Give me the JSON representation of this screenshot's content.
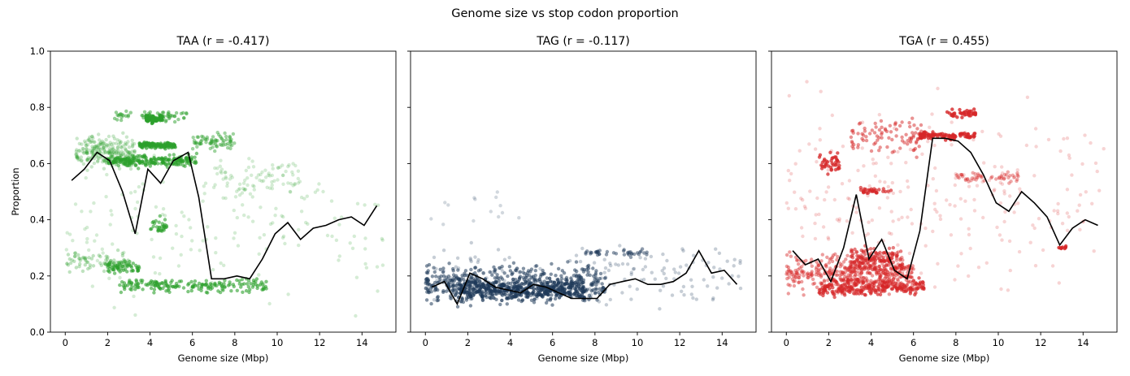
{
  "figure": {
    "suptitle": "Genome size vs stop codon proportion"
  },
  "chart_data": [
    {
      "type": "scatter",
      "title": "TAA  (r = -0.417)",
      "xlabel": "Genome size (Mbp)",
      "ylabel": "Proportion",
      "xlim": [
        -0.7,
        15.6
      ],
      "ylim": [
        0.0,
        1.0
      ],
      "xticks": [
        "0",
        "2",
        "4",
        "6",
        "8",
        "10",
        "12",
        "14"
      ],
      "yticks": [
        "0.0",
        "0.2",
        "0.4",
        "0.6",
        "0.8",
        "1.0"
      ],
      "color": "#2ca02c",
      "mean_line": {
        "color": "#000000",
        "x": [
          0.3,
          0.9,
          1.5,
          2.1,
          2.7,
          3.3,
          3.9,
          4.5,
          5.1,
          5.8,
          6.3,
          6.9,
          7.5,
          8.1,
          8.7,
          9.3,
          9.9,
          10.5,
          11.1,
          11.7,
          12.3,
          12.9,
          13.5,
          14.1,
          14.7
        ],
        "y": [
          0.54,
          0.58,
          0.64,
          0.61,
          0.5,
          0.35,
          0.58,
          0.53,
          0.61,
          0.64,
          0.48,
          0.19,
          0.19,
          0.2,
          0.19,
          0.26,
          0.35,
          0.39,
          0.33,
          0.37,
          0.38,
          0.4,
          0.41,
          0.38,
          0.45
        ]
      },
      "clusters": [
        {
          "x": [
            0.5,
            3.3
          ],
          "y": [
            0.56,
            0.72
          ],
          "n": 260,
          "opacity": 0.25
        },
        {
          "x": [
            2.0,
            6.2
          ],
          "y": [
            0.58,
            0.64
          ],
          "n": 220,
          "opacity": 0.6
        },
        {
          "x": [
            3.5,
            5.2
          ],
          "y": [
            0.65,
            0.68
          ],
          "n": 120,
          "opacity": 0.7
        },
        {
          "x": [
            3.8,
            4.6
          ],
          "y": [
            0.74,
            0.78
          ],
          "n": 70,
          "opacity": 0.8
        },
        {
          "x": [
            2.3,
            5.8
          ],
          "y": [
            0.74,
            0.8
          ],
          "n": 60,
          "opacity": 0.5
        },
        {
          "x": [
            6.0,
            8.0
          ],
          "y": [
            0.64,
            0.72
          ],
          "n": 70,
          "opacity": 0.45
        },
        {
          "x": [
            7.0,
            11.0
          ],
          "y": [
            0.45,
            0.65
          ],
          "n": 80,
          "opacity": 0.2
        },
        {
          "x": [
            0.0,
            3.0
          ],
          "y": [
            0.2,
            0.3
          ],
          "n": 70,
          "opacity": 0.3
        },
        {
          "x": [
            2.0,
            3.5
          ],
          "y": [
            0.2,
            0.26
          ],
          "n": 60,
          "opacity": 0.6
        },
        {
          "x": [
            2.5,
            9.5
          ],
          "y": [
            0.13,
            0.2
          ],
          "n": 180,
          "opacity": 0.6
        },
        {
          "x": [
            4.0,
            4.8
          ],
          "y": [
            0.34,
            0.42
          ],
          "n": 30,
          "opacity": 0.6
        },
        {
          "x": [
            0.0,
            15.0
          ],
          "y": [
            0.0,
            0.75
          ],
          "n": 170,
          "opacity": 0.2
        }
      ]
    },
    {
      "type": "scatter",
      "title": "TAG  (r = -0.117)",
      "xlabel": "Genome size (Mbp)",
      "ylabel": "",
      "xlim": [
        -0.7,
        15.6
      ],
      "ylim": [
        0.0,
        1.0
      ],
      "xticks": [
        "0",
        "2",
        "4",
        "6",
        "8",
        "10",
        "12",
        "14"
      ],
      "yticks": [],
      "color": "#1f3a5a",
      "mean_line": {
        "color": "#000000",
        "x": [
          0.3,
          0.9,
          1.5,
          2.1,
          2.7,
          3.3,
          3.9,
          4.5,
          5.1,
          5.7,
          6.3,
          6.9,
          7.5,
          8.1,
          8.7,
          9.3,
          9.9,
          10.5,
          11.1,
          11.7,
          12.3,
          12.9,
          13.5,
          14.1,
          14.7
        ],
        "y": [
          0.16,
          0.18,
          0.1,
          0.21,
          0.19,
          0.16,
          0.15,
          0.14,
          0.17,
          0.16,
          0.14,
          0.12,
          0.12,
          0.12,
          0.17,
          0.18,
          0.19,
          0.17,
          0.17,
          0.18,
          0.21,
          0.29,
          0.21,
          0.22,
          0.17
        ]
      },
      "clusters": [
        {
          "x": [
            0.0,
            8.5
          ],
          "y": [
            0.08,
            0.26
          ],
          "n": 520,
          "opacity": 0.55
        },
        {
          "x": [
            1.5,
            7.5
          ],
          "y": [
            0.1,
            0.2
          ],
          "n": 280,
          "opacity": 0.75
        },
        {
          "x": [
            7.5,
            10.5
          ],
          "y": [
            0.26,
            0.3
          ],
          "n": 40,
          "opacity": 0.5
        },
        {
          "x": [
            0.0,
            15.0
          ],
          "y": [
            0.05,
            0.35
          ],
          "n": 180,
          "opacity": 0.25
        },
        {
          "x": [
            0.0,
            4.5
          ],
          "y": [
            0.35,
            0.56
          ],
          "n": 14,
          "opacity": 0.2
        }
      ]
    },
    {
      "type": "scatter",
      "title": "TGA  (r = 0.455)",
      "xlabel": "Genome size (Mbp)",
      "ylabel": "",
      "xlim": [
        -0.7,
        15.6
      ],
      "ylim": [
        0.0,
        1.0
      ],
      "xticks": [
        "0",
        "2",
        "4",
        "6",
        "8",
        "10",
        "12",
        "14"
      ],
      "yticks": [],
      "color": "#d62728",
      "mean_line": {
        "color": "#000000",
        "x": [
          0.3,
          0.9,
          1.5,
          2.1,
          2.7,
          3.3,
          3.9,
          4.5,
          5.1,
          5.7,
          6.3,
          6.9,
          7.5,
          8.1,
          8.7,
          9.3,
          9.9,
          10.5,
          11.1,
          11.7,
          12.3,
          12.9,
          13.5,
          14.1,
          14.7
        ],
        "y": [
          0.29,
          0.24,
          0.26,
          0.18,
          0.3,
          0.49,
          0.26,
          0.33,
          0.22,
          0.19,
          0.36,
          0.69,
          0.69,
          0.68,
          0.64,
          0.56,
          0.46,
          0.43,
          0.5,
          0.46,
          0.41,
          0.31,
          0.37,
          0.4,
          0.38
        ]
      },
      "clusters": [
        {
          "x": [
            0.0,
            6.0
          ],
          "y": [
            0.12,
            0.3
          ],
          "n": 420,
          "opacity": 0.45
        },
        {
          "x": [
            1.5,
            6.5
          ],
          "y": [
            0.12,
            0.2
          ],
          "n": 220,
          "opacity": 0.7
        },
        {
          "x": [
            3.0,
            5.5
          ],
          "y": [
            0.2,
            0.32
          ],
          "n": 150,
          "opacity": 0.6
        },
        {
          "x": [
            6.3,
            9.0
          ],
          "y": [
            0.68,
            0.72
          ],
          "n": 90,
          "opacity": 0.8
        },
        {
          "x": [
            7.5,
            9.0
          ],
          "y": [
            0.76,
            0.8
          ],
          "n": 40,
          "opacity": 0.8
        },
        {
          "x": [
            3.0,
            6.5
          ],
          "y": [
            0.6,
            0.78
          ],
          "n": 90,
          "opacity": 0.5
        },
        {
          "x": [
            1.5,
            2.5
          ],
          "y": [
            0.55,
            0.65
          ],
          "n": 40,
          "opacity": 0.75
        },
        {
          "x": [
            3.5,
            5.0
          ],
          "y": [
            0.48,
            0.52
          ],
          "n": 30,
          "opacity": 0.7
        },
        {
          "x": [
            8.0,
            11.0
          ],
          "y": [
            0.52,
            0.58
          ],
          "n": 50,
          "opacity": 0.4
        },
        {
          "x": [
            0.0,
            15.0
          ],
          "y": [
            0.05,
            0.95
          ],
          "n": 240,
          "opacity": 0.2
        },
        {
          "x": [
            12.8,
            13.2
          ],
          "y": [
            0.29,
            0.31
          ],
          "n": 10,
          "opacity": 0.8
        }
      ]
    }
  ]
}
